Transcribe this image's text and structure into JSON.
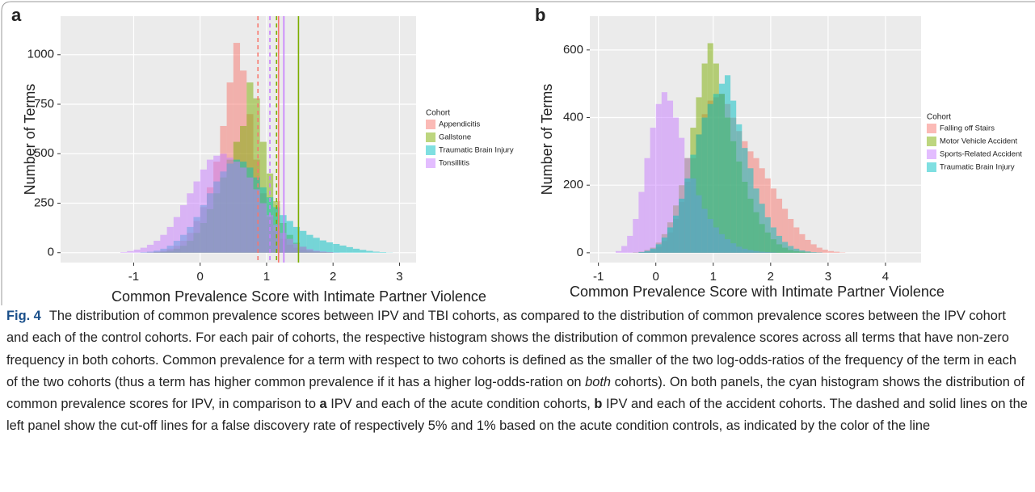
{
  "chart_data": [
    {
      "type": "histogram",
      "panel_label": "a",
      "ylabel": "Number of Terms",
      "xlabel": "Common Prevalence Score with Intimate Partner Violence",
      "legend_title": "Cohort",
      "grid": true,
      "xlim": [
        -2.1,
        3.25
      ],
      "ylim": [
        -50,
        1195
      ],
      "xticks": [
        -1,
        0,
        1,
        2,
        3
      ],
      "yticks": [
        0,
        250,
        500,
        750,
        1000
      ],
      "bins": [
        -1.2,
        -1.1,
        -1.0,
        -0.9,
        -0.8,
        -0.7,
        -0.6,
        -0.5,
        -0.4,
        -0.3,
        -0.2,
        -0.1,
        0.0,
        0.1,
        0.2,
        0.3,
        0.4,
        0.5,
        0.6,
        0.7,
        0.8,
        0.9,
        1.0,
        1.1,
        1.2,
        1.3,
        1.4,
        1.5,
        1.6,
        1.7,
        1.8,
        1.9,
        2.0,
        2.1,
        2.2,
        2.3,
        2.4,
        2.5,
        2.6,
        2.7,
        2.8,
        2.9,
        3.0
      ],
      "series": [
        {
          "name": "Appendicitis",
          "color": "#F8766D",
          "values": [
            0,
            0,
            0,
            0,
            2,
            5,
            10,
            20,
            35,
            60,
            100,
            160,
            230,
            330,
            460,
            640,
            860,
            1060,
            920,
            700,
            470,
            300,
            180,
            110,
            70,
            40,
            25,
            15,
            8,
            5,
            3,
            2,
            0,
            0,
            0,
            0,
            0,
            0,
            0,
            0,
            0,
            0
          ]
        },
        {
          "name": "Gallstone",
          "color": "#7CAE00",
          "values": [
            0,
            0,
            0,
            0,
            0,
            2,
            5,
            10,
            20,
            35,
            60,
            100,
            150,
            220,
            300,
            380,
            470,
            560,
            640,
            860,
            780,
            560,
            400,
            260,
            150,
            90,
            50,
            30,
            15,
            8,
            4,
            2,
            0,
            0,
            0,
            0,
            0,
            0,
            0,
            0,
            0,
            0
          ]
        },
        {
          "name": "Traumatic Brain Injury",
          "color": "#00BFC4",
          "values": [
            0,
            0,
            0,
            2,
            5,
            10,
            20,
            35,
            60,
            90,
            130,
            180,
            240,
            300,
            360,
            410,
            450,
            470,
            460,
            430,
            380,
            330,
            280,
            230,
            190,
            160,
            130,
            110,
            90,
            75,
            62,
            52,
            44,
            36,
            28,
            20,
            14,
            9,
            5,
            3,
            1,
            0
          ]
        },
        {
          "name": "Tonsillitis",
          "color": "#C77CFF",
          "values": [
            3,
            8,
            15,
            25,
            40,
            60,
            90,
            130,
            180,
            240,
            300,
            360,
            420,
            470,
            490,
            500,
            480,
            460,
            430,
            380,
            320,
            250,
            190,
            140,
            100,
            70,
            45,
            30,
            18,
            10,
            6,
            3,
            1,
            0,
            0,
            0,
            0,
            0,
            0,
            0,
            0,
            0
          ]
        }
      ],
      "cutoffs": [
        {
          "value": 0.87,
          "color": "#F8766D",
          "dashed": true
        },
        {
          "value": 1.05,
          "color": "#C77CFF",
          "dashed": true
        },
        {
          "value": 1.15,
          "color": "#7CAE00",
          "dashed": true
        },
        {
          "value": 1.18,
          "color": "#F8766D",
          "dashed": false
        },
        {
          "value": 1.26,
          "color": "#C77CFF",
          "dashed": false
        },
        {
          "value": 1.48,
          "color": "#7CAE00",
          "dashed": false
        }
      ]
    },
    {
      "type": "histogram",
      "panel_label": "b",
      "ylabel": "Number of Terms",
      "xlabel": "Common Prevalence Score with Intimate Partner Violence",
      "legend_title": "Cohort",
      "grid": true,
      "xlim": [
        -1.15,
        4.62
      ],
      "ylim": [
        -29,
        700
      ],
      "xticks": [
        -1,
        0,
        1,
        2,
        3,
        4
      ],
      "yticks": [
        0,
        200,
        400,
        600
      ],
      "bins": [
        -0.7,
        -0.6,
        -0.5,
        -0.4,
        -0.3,
        -0.2,
        -0.1,
        0.0,
        0.1,
        0.2,
        0.3,
        0.4,
        0.5,
        0.6,
        0.7,
        0.8,
        0.9,
        1.0,
        1.1,
        1.2,
        1.3,
        1.4,
        1.5,
        1.6,
        1.7,
        1.8,
        1.9,
        2.0,
        2.1,
        2.2,
        2.3,
        2.4,
        2.5,
        2.6,
        2.7,
        2.8,
        2.9,
        3.0,
        3.1,
        3.2,
        3.3,
        3.4,
        3.5,
        3.6,
        3.7,
        3.8,
        3.9,
        4.0,
        4.1,
        4.2,
        4.3
      ],
      "series": [
        {
          "name": "Falling off Stairs",
          "color": "#F8766D",
          "values": [
            0,
            0,
            0,
            0,
            1,
            3,
            8,
            18,
            35,
            60,
            100,
            150,
            210,
            280,
            350,
            410,
            450,
            460,
            470,
            440,
            400,
            360,
            330,
            300,
            280,
            250,
            220,
            190,
            160,
            130,
            100,
            75,
            55,
            38,
            25,
            15,
            9,
            5,
            3,
            1,
            0,
            0,
            0,
            0,
            0,
            0,
            0,
            0,
            0,
            0
          ]
        },
        {
          "name": "Motor Vehicle Accident",
          "color": "#7CAE00",
          "values": [
            0,
            0,
            0,
            1,
            3,
            8,
            15,
            30,
            55,
            90,
            140,
            200,
            280,
            370,
            460,
            560,
            620,
            560,
            470,
            400,
            330,
            270,
            210,
            160,
            120,
            85,
            60,
            40,
            25,
            15,
            8,
            5,
            3,
            1,
            0,
            0,
            0,
            0,
            0,
            0,
            0,
            0,
            0,
            0,
            0,
            0,
            0,
            0,
            0,
            0
          ]
        },
        {
          "name": "Sports-Related Accident",
          "color": "#C77CFF",
          "values": [
            5,
            20,
            50,
            100,
            180,
            280,
            370,
            440,
            475,
            450,
            400,
            340,
            280,
            220,
            170,
            130,
            100,
            75,
            55,
            40,
            28,
            18,
            12,
            8,
            5,
            3,
            2,
            1,
            0,
            0,
            0,
            0,
            0,
            0,
            0,
            0,
            0,
            0,
            0,
            0,
            0,
            0,
            0,
            0,
            0,
            0,
            0,
            0,
            0,
            0
          ]
        },
        {
          "name": "Traumatic Brain Injury",
          "color": "#00BFC4",
          "values": [
            0,
            0,
            0,
            0,
            2,
            5,
            12,
            25,
            45,
            75,
            110,
            160,
            220,
            290,
            350,
            400,
            440,
            470,
            500,
            525,
            450,
            380,
            310,
            250,
            190,
            145,
            105,
            75,
            50,
            32,
            20,
            12,
            7,
            4,
            2,
            1,
            0,
            0,
            0,
            0,
            0,
            0,
            0,
            0,
            0,
            0,
            0,
            0,
            0,
            0
          ]
        }
      ]
    }
  ],
  "caption": {
    "label": "Fig. 4",
    "parts": [
      "The distribution of common prevalence scores between IPV and TBI cohorts, as compared to the distribution of common prevalence scores between the IPV cohort and each of the control cohorts. For each pair of cohorts, the respective histogram shows the distribution of common prevalence scores across all terms that have non-zero frequency in both cohorts. Common prevalence for a term with respect to two cohorts is defined as the smaller of the two log-odds-ratios of the frequency of the term in each of the two cohorts (thus a term has higher common prevalence if it has a higher log-odds-ration on",
      "both",
      "cohorts). On both panels, the cyan histogram shows the distribution of common prevalence scores for IPV, in comparison to",
      "a",
      "IPV and each of the acute condition cohorts,",
      "b",
      "IPV and each of the accident cohorts. The dashed and solid lines on the left panel show the cut-off lines for a false discovery rate of respectively 5% and 1% based on the acute condition controls, as indicated by the color of the line"
    ]
  }
}
